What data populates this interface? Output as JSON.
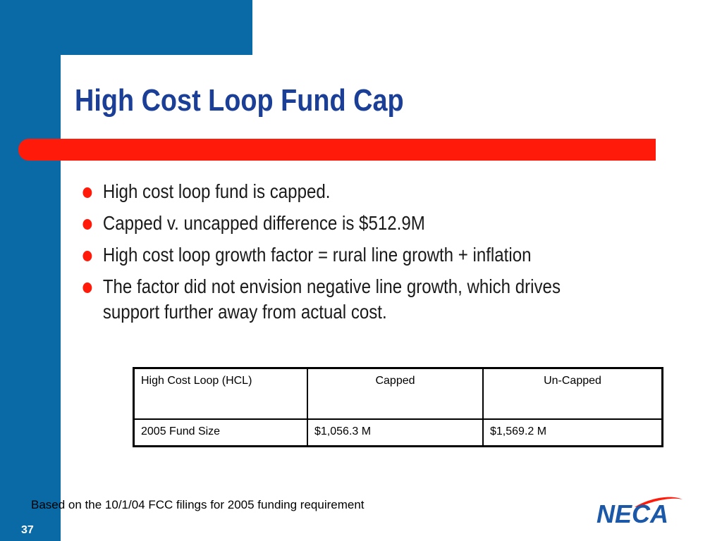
{
  "slide": {
    "title": "High Cost Loop Fund Cap",
    "bullets": [
      "High cost loop fund is capped.",
      "Capped v. uncapped difference is $512.9M",
      "High cost loop growth factor = rural line growth + inflation",
      "The factor did not envision negative line growth, which drives support further away from actual cost."
    ],
    "table": {
      "headers": [
        "High Cost Loop (HCL)",
        "Capped",
        "Un-Capped"
      ],
      "rows": [
        [
          "2005 Fund Size",
          "$1,056.3 M",
          "$1,569.2 M"
        ]
      ]
    },
    "footnote": "Based on the 10/1/04 FCC filings for 2005 funding requirement",
    "page_number": "37",
    "logo_text": "NECA"
  },
  "colors": {
    "frame_blue": "#0a6aa6",
    "title_blue": "#1b3f96",
    "accent_red": "#ff1a0a",
    "logo_blue": "#1b58a8"
  }
}
